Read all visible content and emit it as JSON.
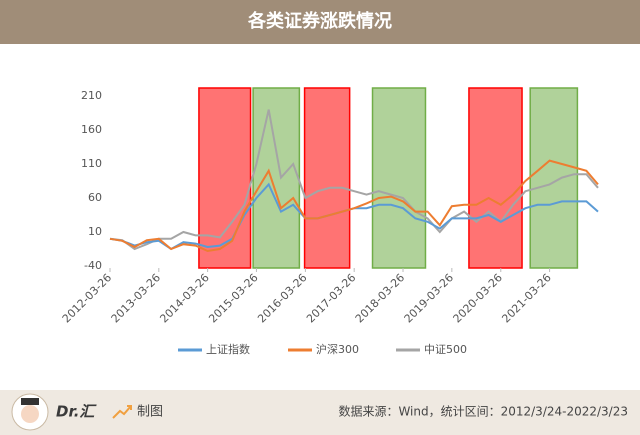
{
  "header": {
    "title": "各类证券涨跌情况"
  },
  "chart_data": {
    "type": "line",
    "x": [
      "2012-03-26",
      "2012-06-26",
      "2012-09-26",
      "2012-12-26",
      "2013-03-26",
      "2013-06-26",
      "2013-09-26",
      "2013-12-26",
      "2014-03-26",
      "2014-06-26",
      "2014-09-26",
      "2014-12-26",
      "2015-03-26",
      "2015-06-26",
      "2015-09-26",
      "2015-12-26",
      "2016-03-26",
      "2016-06-26",
      "2016-09-26",
      "2016-12-26",
      "2017-03-26",
      "2017-06-26",
      "2017-09-26",
      "2017-12-26",
      "2018-03-26",
      "2018-06-26",
      "2018-09-26",
      "2018-12-26",
      "2019-03-26",
      "2019-06-26",
      "2019-09-26",
      "2019-12-26",
      "2020-03-26",
      "2020-06-26",
      "2020-09-26",
      "2020-12-26",
      "2021-03-26",
      "2021-06-26",
      "2021-09-26",
      "2021-12-26",
      "2022-03-23"
    ],
    "series": [
      {
        "name": "上证指数",
        "color": "#5b9bd5",
        "values": [
          0,
          -3,
          -10,
          -5,
          -3,
          -15,
          -5,
          -7,
          -12,
          -10,
          0,
          35,
          60,
          80,
          40,
          50,
          30,
          30,
          35,
          40,
          45,
          45,
          50,
          50,
          45,
          30,
          25,
          15,
          30,
          30,
          30,
          35,
          25,
          35,
          45,
          50,
          50,
          55,
          55,
          55,
          40
        ]
      },
      {
        "name": "沪深300",
        "color": "#ed7d31",
        "values": [
          0,
          -3,
          -12,
          -2,
          0,
          -15,
          -8,
          -10,
          -18,
          -15,
          -3,
          40,
          70,
          100,
          45,
          60,
          30,
          30,
          35,
          40,
          45,
          52,
          60,
          62,
          55,
          40,
          40,
          20,
          48,
          50,
          50,
          60,
          50,
          65,
          85,
          100,
          115,
          110,
          105,
          100,
          80
        ]
      },
      {
        "name": "中证500",
        "color": "#a5a5a5",
        "values": [
          0,
          -2,
          -15,
          -8,
          0,
          0,
          10,
          5,
          5,
          2,
          25,
          50,
          110,
          190,
          90,
          110,
          60,
          70,
          75,
          75,
          70,
          65,
          70,
          65,
          60,
          40,
          30,
          10,
          30,
          40,
          25,
          40,
          25,
          50,
          70,
          75,
          80,
          90,
          95,
          95,
          75
        ]
      }
    ],
    "xlim": [
      "2012-03-26",
      "2022-03-23"
    ],
    "xticks": [
      "2012-03-26",
      "2013-03-26",
      "2014-03-26",
      "2015-03-26",
      "2016-03-26",
      "2017-03-26",
      "2018-03-26",
      "2019-03-26",
      "2020-03-26",
      "2021-03-26"
    ],
    "ylim": [
      -40,
      210
    ],
    "yticks": [
      -40,
      10,
      60,
      110,
      160,
      210
    ],
    "grid": false,
    "legend": "bottom",
    "highlights": [
      {
        "start": "2014-01-20",
        "end": "2015-02-10",
        "color": "#ff0000"
      },
      {
        "start": "2015-03-01",
        "end": "2016-02-10",
        "color": "#70ad47"
      },
      {
        "start": "2016-03-20",
        "end": "2017-02-20",
        "color": "#ff0000"
      },
      {
        "start": "2017-08-10",
        "end": "2018-09-10",
        "color": "#70ad47"
      },
      {
        "start": "2019-08-01",
        "end": "2020-09-01",
        "color": "#ff0000"
      },
      {
        "start": "2020-11-01",
        "end": "2021-10-20",
        "color": "#70ad47"
      }
    ]
  },
  "footer": {
    "brand": "Dr.汇",
    "made": "制图",
    "source": "数据来源：Wind，统计区间：2012/3/24-2022/3/23"
  }
}
